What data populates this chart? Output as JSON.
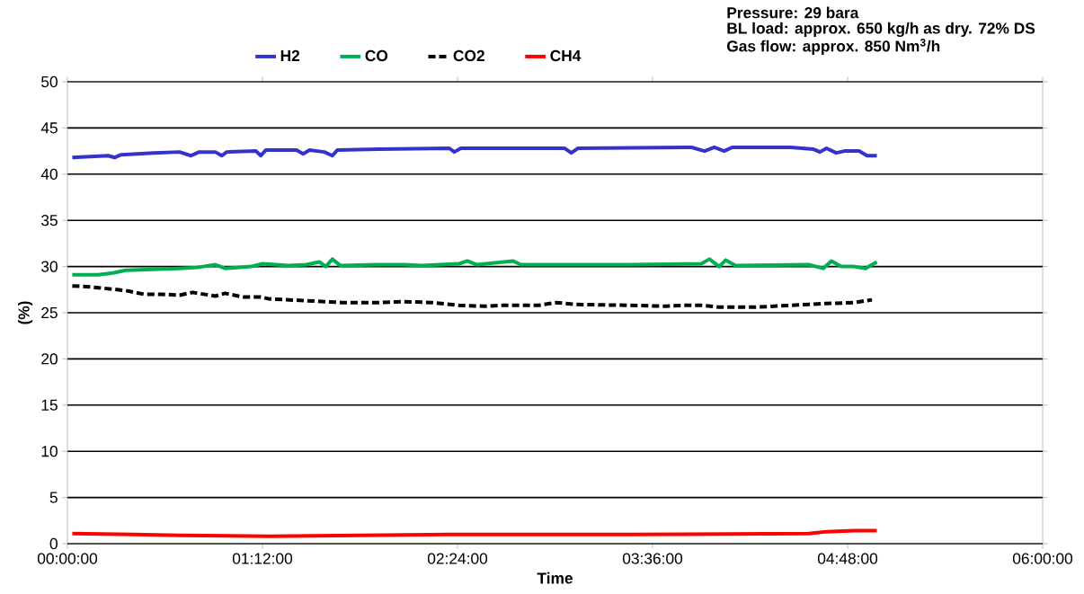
{
  "chart_data": {
    "type": "line",
    "xlabel": "Time",
    "ylabel": "(%)",
    "xlim": [
      0,
      6
    ],
    "ylim": [
      0,
      50
    ],
    "xticks": [
      {
        "value": 0,
        "label": "00:00:00"
      },
      {
        "value": 1.2,
        "label": "01:12:00"
      },
      {
        "value": 2.4,
        "label": "02:24:00"
      },
      {
        "value": 3.6,
        "label": "03:36:00"
      },
      {
        "value": 4.8,
        "label": "04:48:00"
      },
      {
        "value": 6,
        "label": "06:00:00"
      }
    ],
    "yticks": [
      0,
      5,
      10,
      15,
      20,
      25,
      30,
      35,
      40,
      45,
      50
    ],
    "grid": "y",
    "legend": "top",
    "line_style": "solid",
    "annotations": [
      "**Pressure: 29 bara**",
      "**BL load: approx. 650 kg/h as dry. 72% DS**",
      "**Gas flow: approx. 850 Nm$^{3}$/h**"
    ],
    "series": [
      {
        "name": "H2",
        "color": "#3333cc",
        "x": [
          0.03,
          0.14,
          0.25,
          0.29,
          0.33,
          0.53,
          0.69,
          0.76,
          0.81,
          0.91,
          0.95,
          0.98,
          1.16,
          1.19,
          1.22,
          1.41,
          1.45,
          1.49,
          1.58,
          1.63,
          1.66,
          1.91,
          2.35,
          2.38,
          2.42,
          2.79,
          3.06,
          3.1,
          3.14,
          3.84,
          3.92,
          3.98,
          4.04,
          4.09,
          4.45,
          4.59,
          4.63,
          4.67,
          4.73,
          4.78,
          4.87,
          4.92,
          4.98
        ],
        "values": [
          41.8,
          41.9,
          42.0,
          41.8,
          42.1,
          42.3,
          42.4,
          42.0,
          42.4,
          42.4,
          42.0,
          42.4,
          42.5,
          42.0,
          42.6,
          42.6,
          42.2,
          42.6,
          42.4,
          42.0,
          42.6,
          42.7,
          42.8,
          42.4,
          42.8,
          42.8,
          42.8,
          42.3,
          42.8,
          42.9,
          42.5,
          42.9,
          42.5,
          42.9,
          42.9,
          42.7,
          42.4,
          42.8,
          42.3,
          42.5,
          42.5,
          42.0,
          42.0
        ]
      },
      {
        "name": "CO",
        "color": "#00b050",
        "x": [
          0.03,
          0.19,
          0.28,
          0.36,
          0.69,
          0.8,
          0.91,
          0.97,
          1.13,
          1.2,
          1.36,
          1.47,
          1.55,
          1.59,
          1.63,
          1.68,
          1.91,
          2.07,
          2.18,
          2.41,
          2.46,
          2.52,
          2.74,
          2.79,
          3.46,
          3.9,
          3.95,
          4.01,
          4.05,
          4.11,
          4.56,
          4.65,
          4.7,
          4.76,
          4.84,
          4.91,
          4.98
        ],
        "values": [
          29.1,
          29.1,
          29.3,
          29.6,
          29.8,
          29.9,
          30.2,
          29.8,
          30.0,
          30.3,
          30.1,
          30.2,
          30.5,
          30.0,
          30.8,
          30.1,
          30.2,
          30.2,
          30.1,
          30.3,
          30.6,
          30.2,
          30.6,
          30.2,
          30.2,
          30.3,
          30.8,
          30.0,
          30.7,
          30.1,
          30.2,
          29.8,
          30.6,
          30.0,
          30.0,
          29.8,
          30.5
        ]
      },
      {
        "name": "CO2",
        "color": "#000000",
        "line_style": "dashed",
        "x": [
          0.03,
          0.14,
          0.25,
          0.36,
          0.47,
          0.58,
          0.69,
          0.77,
          0.91,
          0.97,
          1.08,
          1.19,
          1.24,
          1.47,
          1.69,
          1.91,
          2.07,
          2.24,
          2.41,
          2.57,
          2.68,
          2.9,
          3.01,
          3.12,
          3.46,
          3.68,
          3.79,
          3.9,
          4.01,
          4.23,
          4.45,
          4.67,
          4.84,
          4.95
        ],
        "values": [
          27.9,
          27.8,
          27.6,
          27.4,
          27.0,
          27.0,
          26.9,
          27.2,
          26.8,
          27.1,
          26.7,
          26.7,
          26.5,
          26.3,
          26.1,
          26.1,
          26.2,
          26.1,
          25.8,
          25.7,
          25.8,
          25.8,
          26.1,
          25.9,
          25.8,
          25.7,
          25.8,
          25.8,
          25.6,
          25.6,
          25.8,
          26.0,
          26.1,
          26.4
        ]
      },
      {
        "name": "CH4",
        "color": "#ff0000",
        "x": [
          0.03,
          0.41,
          0.69,
          1.24,
          1.8,
          2.35,
          3.46,
          4.56,
          4.67,
          4.84,
          4.98
        ],
        "values": [
          1.1,
          1.0,
          0.9,
          0.8,
          0.9,
          1.0,
          1.0,
          1.1,
          1.3,
          1.4,
          1.4
        ]
      }
    ]
  }
}
